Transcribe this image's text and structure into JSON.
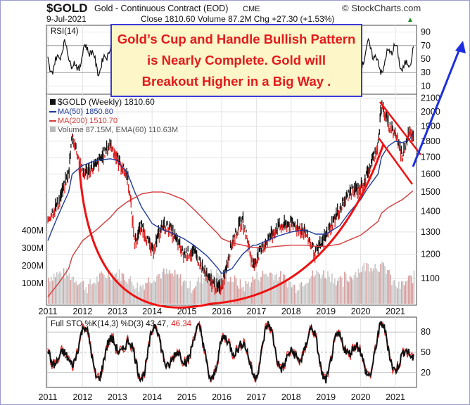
{
  "header": {
    "symbol": "$GOLD",
    "name": "Gold - Continuous Contract (EOD)",
    "exchange": "CME",
    "brand": "© StockCharts.com",
    "date": "9-Jul-2021",
    "quote": "Close 1810.60  Volume 87.2M  Chg +27.30 (+1.53%)",
    "quote_arrow": "▲"
  },
  "annotation": {
    "line1": "Gold’s Cup and Handle Bullish Pattern",
    "line2": "is Nearly Complete. Gold will",
    "line3": "Breakout Higher in a Big Way ."
  },
  "colors": {
    "price": "#111111",
    "up_bar": "#111111",
    "down_bar": "#dd2222",
    "ma50": "#1f3a9a",
    "ma200": "#d23b3b",
    "cup": "#ee1111",
    "arrow": "#1c2ee0",
    "volume": "#c9c9c9",
    "callout_text": "#e21b1b",
    "callout_border": "#3a3ad8"
  },
  "chart_data": [
    {
      "type": "line",
      "title": "RSI(14)",
      "ylim": [
        0,
        100
      ],
      "y_ticks": [
        "90",
        "70",
        "50",
        "30",
        "10"
      ],
      "reference_lines": [
        30,
        70
      ],
      "grid": true
    },
    {
      "type": "line",
      "title": "$GOLD (Weekly) 1810.60",
      "scale": "log",
      "ylim": [
        1000,
        2130
      ],
      "y_ticks": [
        "2100",
        "2000",
        "1900",
        "1800",
        "1700",
        "1600",
        "1500",
        "1400",
        "1300",
        "1200",
        "1100"
      ],
      "x_ticks": [
        "2011",
        "2012",
        "2013",
        "2014",
        "2015",
        "2016",
        "2017",
        "2018",
        "2019",
        "2020",
        "2021"
      ],
      "volume_ticks": [
        "400M",
        "300M",
        "200M",
        "100M"
      ],
      "legend_position": "top-left",
      "legend": [
        {
          "label": "$GOLD (Weekly) 1810.60",
          "color": "#111111"
        },
        {
          "label": "MA(50) 1850.80",
          "color": "#1f3a9a"
        },
        {
          "label": "MA(200) 1510.70",
          "color": "#d23b3b"
        },
        {
          "label": "Volume 87.15M, EMA(60) 110.63M",
          "color": "#888888"
        }
      ],
      "x": [
        2011.0,
        2011.3,
        2011.6,
        2011.7,
        2012.0,
        2012.4,
        2012.8,
        2013.0,
        2013.3,
        2013.5,
        2013.7,
        2014.0,
        2014.3,
        2014.5,
        2014.9,
        2015.2,
        2015.6,
        2015.9,
        2016.0,
        2016.3,
        2016.6,
        2016.9,
        2017.0,
        2017.3,
        2017.6,
        2018.0,
        2018.4,
        2018.7,
        2019.0,
        2019.4,
        2019.7,
        2020.0,
        2020.2,
        2020.5,
        2020.6,
        2020.8,
        2021.0,
        2021.2,
        2021.4,
        2021.52
      ],
      "series": [
        {
          "values": [
            1360,
            1440,
            1600,
            1840,
            1600,
            1650,
            1780,
            1690,
            1580,
            1250,
            1330,
            1210,
            1330,
            1320,
            1200,
            1210,
            1100,
            1060,
            1070,
            1250,
            1360,
            1150,
            1180,
            1260,
            1320,
            1340,
            1300,
            1200,
            1280,
            1410,
            1500,
            1520,
            1600,
            1780,
            2050,
            1910,
            1850,
            1700,
            1880,
            1810
          ]
        },
        {
          "name": "MA(50)",
          "values": [
            1260,
            1380,
            1500,
            1600,
            1650,
            1680,
            1690,
            1680,
            1600,
            1500,
            1420,
            1340,
            1310,
            1300,
            1270,
            1240,
            1190,
            1140,
            1120,
            1140,
            1200,
            1240,
            1240,
            1260,
            1280,
            1300,
            1310,
            1290,
            1290,
            1330,
            1400,
            1460,
            1520,
            1600,
            1700,
            1770,
            1800,
            1790,
            1810,
            1850
          ]
        },
        {
          "name": "MA(200)",
          "values": [
            1030,
            1080,
            1140,
            1190,
            1260,
            1310,
            1370,
            1410,
            1450,
            1470,
            1490,
            1500,
            1500,
            1490,
            1460,
            1410,
            1340,
            1290,
            1270,
            1250,
            1240,
            1230,
            1230,
            1230,
            1235,
            1240,
            1240,
            1235,
            1235,
            1245,
            1265,
            1285,
            1310,
            1350,
            1390,
            1420,
            1440,
            1460,
            1490,
            1510
          ]
        }
      ],
      "annotations": [
        "cup arc",
        "handle channel",
        "breakout arrow"
      ]
    },
    {
      "type": "line",
      "title": "Full STO %K(14,3) %D(3) 43.47, 46.34",
      "title_black": "Full STO %K(14,3) %D(3) 43.47,",
      "title_red": "46.34",
      "ylim": [
        0,
        100
      ],
      "y_ticks": [
        "80",
        "50",
        "20"
      ],
      "x_ticks": [
        "2011",
        "2012",
        "2013",
        "2014",
        "2015",
        "2016",
        "2017",
        "2018",
        "2019",
        "2020",
        "2021"
      ],
      "reference_lines": [
        20,
        80
      ],
      "series": [
        {
          "name": "%K(14,3)",
          "last": 43.47
        },
        {
          "name": "%D(3)",
          "last": 46.34
        }
      ]
    }
  ]
}
